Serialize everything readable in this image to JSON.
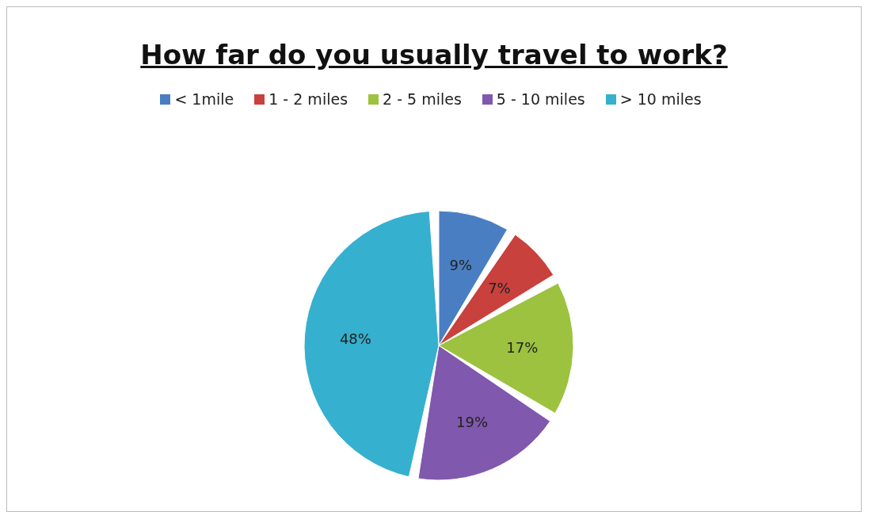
{
  "chart_data": {
    "type": "pie",
    "title": "How far do you usually travel to work?",
    "categories": [
      "< 1mile",
      "1 - 2 miles",
      "2 - 5 miles",
      "5 - 10 miles",
      "> 10 miles"
    ],
    "values": [
      9,
      7,
      17,
      19,
      48
    ],
    "colors": [
      "#4a7ec2",
      "#c8413c",
      "#9cc23f",
      "#8058ad",
      "#36b0cf"
    ],
    "value_labels": [
      "9%",
      "7%",
      "17%",
      "19%",
      "48%"
    ],
    "legend": "top"
  }
}
